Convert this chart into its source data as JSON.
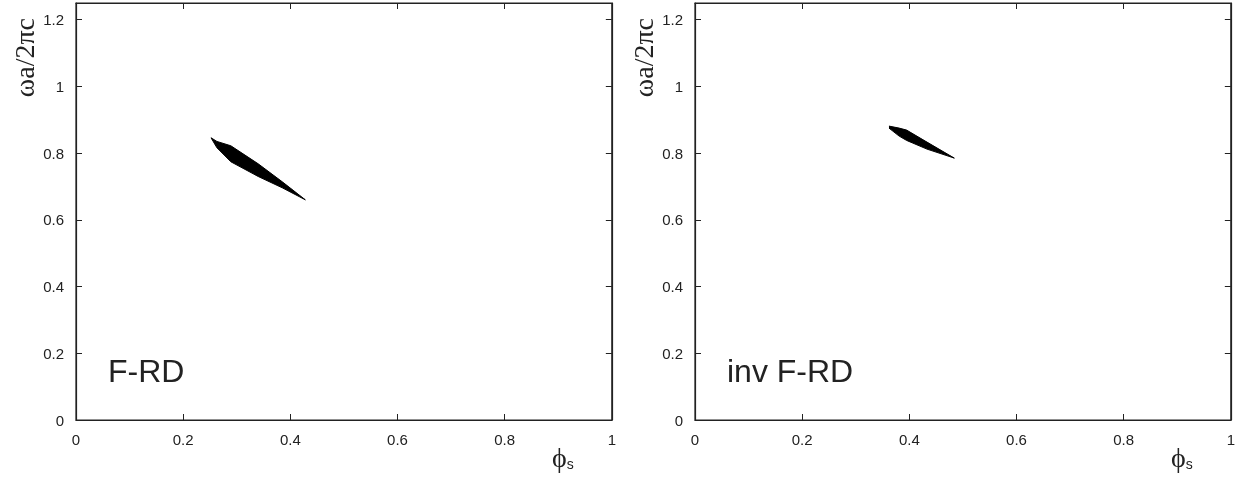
{
  "chart_data": [
    {
      "type": "area",
      "xlabel": "ϕ$_{s}$",
      "ylabel": "ωa/2πc",
      "annotations": [
        "F-RD"
      ],
      "xlim": [
        0,
        1
      ],
      "xticks": [
        0,
        0.2,
        0.4,
        0.6,
        0.8,
        1
      ],
      "ylim": [
        0,
        1.25
      ],
      "yticks": [
        0,
        0.2,
        0.4,
        0.6,
        0.8,
        1,
        1.2
      ],
      "grid": false,
      "series": [
        {
          "color": "#000000",
          "x": [
            0.252,
            0.263,
            0.289,
            0.34,
            0.385,
            0.428,
            0.385,
            0.34,
            0.289,
            0.263,
            0.252
          ],
          "values": [
            0.846,
            0.835,
            0.822,
            0.768,
            0.714,
            0.66,
            0.696,
            0.73,
            0.774,
            0.816,
            0.846
          ]
        }
      ]
    },
    {
      "type": "area",
      "xlabel": "ϕ$_{s}$",
      "ylabel": "ωa/2πc",
      "annotations": [
        "inv F-RD"
      ],
      "xlim": [
        0,
        1
      ],
      "xticks": [
        0,
        0.2,
        0.4,
        0.6,
        0.8,
        1
      ],
      "ylim": [
        0,
        1.25
      ],
      "yticks": [
        0,
        0.2,
        0.4,
        0.6,
        0.8,
        1,
        1.2
      ],
      "grid": false,
      "series": [
        {
          "color": "#000000",
          "x": [
            0.362,
            0.381,
            0.395,
            0.433,
            0.484,
            0.433,
            0.395,
            0.381,
            0.362
          ],
          "values": [
            0.881,
            0.875,
            0.869,
            0.833,
            0.785,
            0.812,
            0.838,
            0.851,
            0.875
          ]
        }
      ]
    }
  ]
}
